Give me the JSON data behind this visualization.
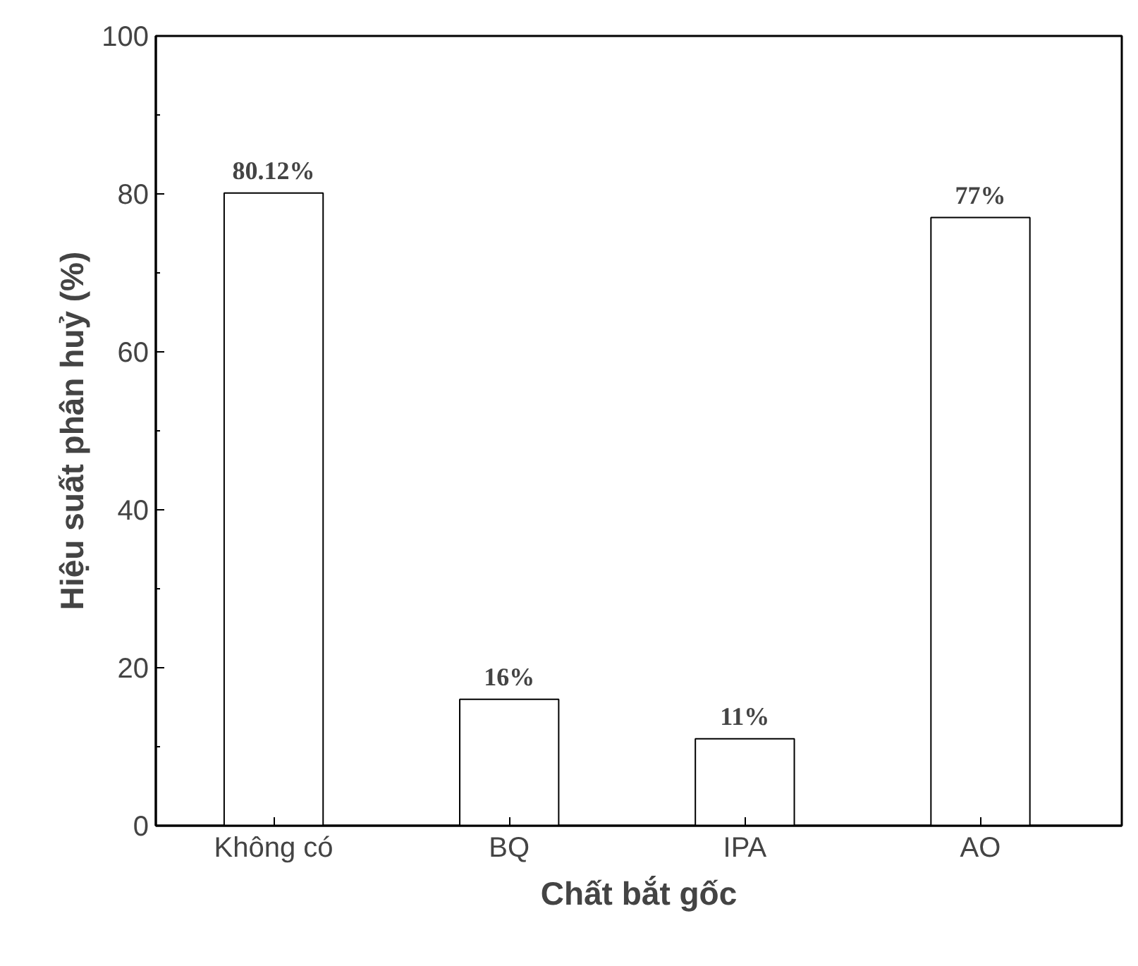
{
  "chart_data": {
    "type": "bar",
    "xlabel": "Chất bắt gốc",
    "ylabel": "Hiệu suất phân huỷ (%)",
    "categories": [
      "Không có",
      "BQ",
      "IPA",
      "AO"
    ],
    "values": [
      80.12,
      16,
      11,
      77
    ],
    "value_labels": [
      "80.12%",
      "16%",
      "11%",
      "77%"
    ],
    "color": "#000000",
    "ylim": [
      0,
      100
    ],
    "yticks": [
      0,
      20,
      40,
      60,
      80,
      100
    ],
    "grid": false
  }
}
